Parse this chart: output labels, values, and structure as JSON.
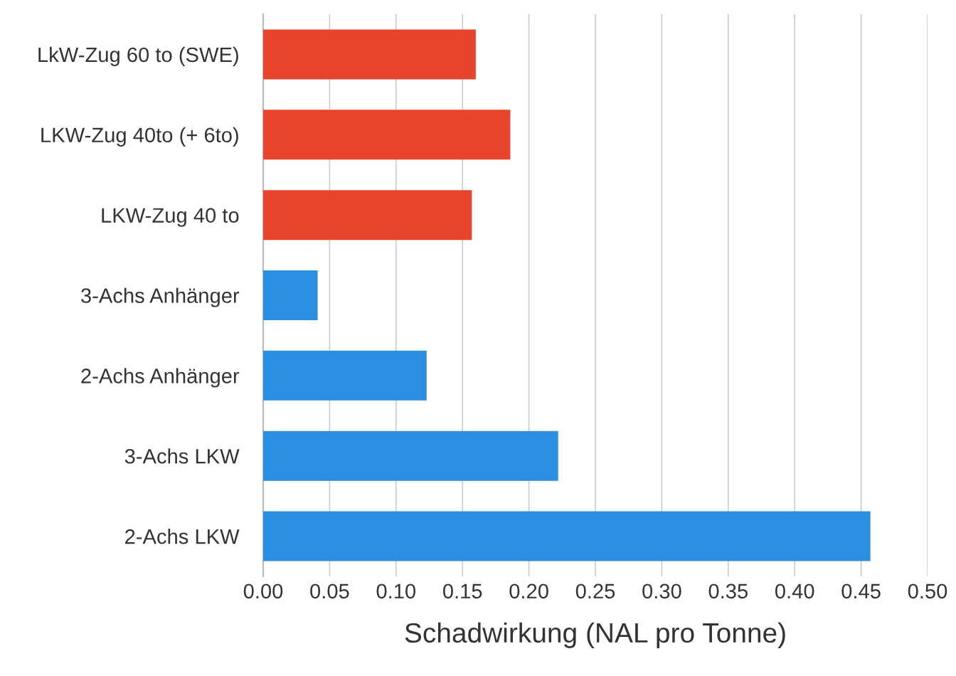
{
  "chart_data": {
    "type": "bar",
    "orientation": "horizontal",
    "xlabel": "Schadwirkung (NAL pro Tonne)",
    "categories": [
      "LkW-Zug 60 to (SWE)",
      "LKW-Zug 40to (+ 6to)",
      "LKW-Zug 40 to",
      "3-Achs Anhänger",
      "2-Achs Anhänger",
      "3-Achs LKW",
      "2-Achs LKW"
    ],
    "values": [
      0.16,
      0.186,
      0.157,
      0.041,
      0.123,
      0.222,
      0.457
    ],
    "colors": [
      "#e8442c",
      "#e8442c",
      "#e8442c",
      "#2c8ee0",
      "#2c8ee0",
      "#2c8ee0",
      "#2c8ee0"
    ],
    "xlim": [
      0,
      0.5
    ],
    "xticks": [
      {
        "value": 0,
        "label": "0.00"
      },
      {
        "value": 0.05,
        "label": "0.05"
      },
      {
        "value": 0.1,
        "label": "0.10"
      },
      {
        "value": 0.15,
        "label": "0.15"
      },
      {
        "value": 0.2,
        "label": "0.20"
      },
      {
        "value": 0.25,
        "label": "0.25"
      },
      {
        "value": 0.3,
        "label": "0.30"
      },
      {
        "value": 0.35,
        "label": "0.35"
      },
      {
        "value": 0.4,
        "label": "0.40"
      },
      {
        "value": 0.45,
        "label": "0.45"
      },
      {
        "value": 0.5,
        "label": "0.50"
      }
    ],
    "grid": "x"
  }
}
